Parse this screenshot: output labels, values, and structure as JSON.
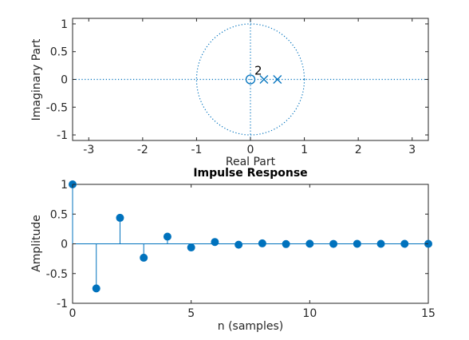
{
  "chart_data": [
    {
      "type": "scatter",
      "title": "",
      "xlabel": "Real Part",
      "ylabel": "Imaginary Part",
      "xlim": [
        -3.3,
        3.3
      ],
      "ylim": [
        -1.1,
        1.1
      ],
      "x_ticks": [
        "-3",
        "-2",
        "-1",
        "0",
        "1",
        "2",
        "3"
      ],
      "y_ticks": [
        "1",
        "0.5",
        "0",
        "-0.5",
        "-1"
      ],
      "zeros": [
        {
          "x": 0,
          "y": 0
        }
      ],
      "zero_multiplicity_label": "2",
      "poles": [
        {
          "x": 0.25,
          "y": 0
        },
        {
          "x": 0.5,
          "y": 0
        }
      ],
      "unit_circle": true,
      "grid": false
    },
    {
      "type": "stem",
      "title": "Impulse Response",
      "xlabel": "n (samples)",
      "ylabel": "Amplitude",
      "xlim": [
        0,
        15
      ],
      "ylim": [
        -1,
        1
      ],
      "x_ticks": [
        "0",
        "5",
        "10",
        "15"
      ],
      "y_ticks": [
        "1",
        "0.5",
        "0",
        "-0.5",
        "-1"
      ],
      "x": [
        0,
        1,
        2,
        3,
        4,
        5,
        6,
        7,
        8,
        9,
        10,
        11,
        12,
        13,
        14,
        15
      ],
      "values": [
        1,
        -0.75,
        0.4375,
        -0.234,
        0.121,
        -0.061,
        0.031,
        -0.015,
        0.008,
        -0.004,
        0.002,
        -0.001,
        0.0005,
        -0.0002,
        0.0001,
        -6e-05
      ],
      "grid": false
    }
  ],
  "colors": {
    "accent": "#0072BD",
    "axis": "#262626"
  }
}
